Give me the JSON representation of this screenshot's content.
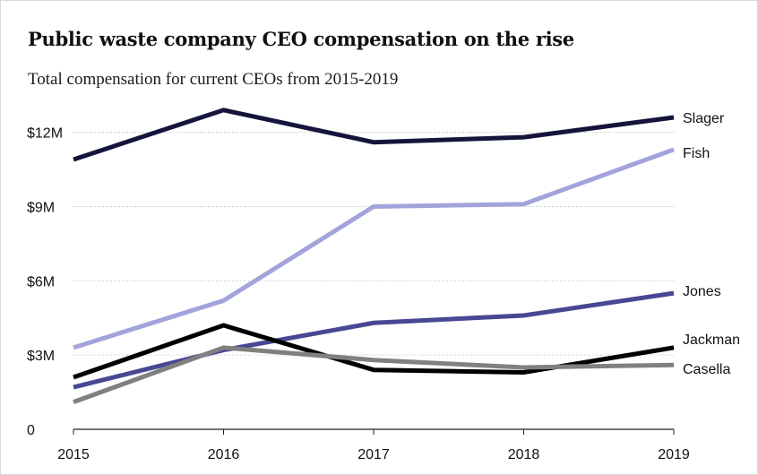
{
  "chart_data": {
    "type": "line",
    "title": "Public waste company CEO compensation on the rise",
    "subtitle": "Total compensation for current CEOs from 2015-2019",
    "xlabel": "",
    "ylabel": "",
    "x": [
      2015,
      2016,
      2017,
      2018,
      2019
    ],
    "x_tick_labels": [
      "2015",
      "2016",
      "2017",
      "2018",
      "2019"
    ],
    "ylim": [
      0,
      13000000
    ],
    "y_ticks": [
      0,
      3000000,
      6000000,
      9000000,
      12000000
    ],
    "y_tick_labels": [
      "0",
      "$3M",
      "$6M",
      "$9M",
      "$12M"
    ],
    "grid": "horizontal dotted",
    "legend": "direct labels at line ends",
    "series": [
      {
        "name": "Slager",
        "color": "#14143c",
        "values": [
          10900000,
          12900000,
          11600000,
          11800000,
          12600000
        ]
      },
      {
        "name": "Fish",
        "color": "#a3a3dc",
        "values": [
          3300000,
          5200000,
          9000000,
          9100000,
          11300000
        ]
      },
      {
        "name": "Jones",
        "color": "#474794",
        "values": [
          1700000,
          3200000,
          4300000,
          4600000,
          5500000
        ]
      },
      {
        "name": "Jackman",
        "color": "#000000",
        "values": [
          2100000,
          4200000,
          2400000,
          2300000,
          3300000
        ]
      },
      {
        "name": "Casella",
        "color": "#808080",
        "values": [
          1100000,
          3300000,
          2800000,
          2500000,
          2600000
        ]
      }
    ]
  }
}
